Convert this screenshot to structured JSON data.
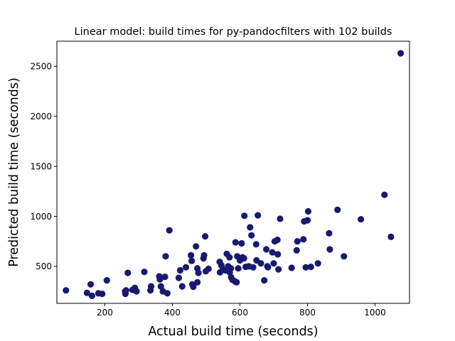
{
  "chart_data": {
    "type": "scatter",
    "title": "Linear model: build times for py-pandocfilters with 102 builds",
    "xlabel": "Actual build time (seconds)",
    "ylabel": "Predicted build time (seconds)",
    "xlim": [
      58,
      1102
    ],
    "ylim": [
      130,
      2751
    ],
    "xticks": [
      200,
      400,
      600,
      800,
      1000
    ],
    "yticks": [
      500,
      1000,
      1500,
      2000,
      2500
    ],
    "marker_color": "#191970",
    "grid": false,
    "points": [
      [
        85,
        260
      ],
      [
        147,
        235
      ],
      [
        158,
        320
      ],
      [
        162,
        205
      ],
      [
        181,
        230
      ],
      [
        192,
        225
      ],
      [
        206,
        360
      ],
      [
        261,
        225
      ],
      [
        263,
        260
      ],
      [
        268,
        435
      ],
      [
        282,
        265
      ],
      [
        289,
        285
      ],
      [
        294,
        250
      ],
      [
        317,
        445
      ],
      [
        335,
        260
      ],
      [
        337,
        300
      ],
      [
        361,
        400
      ],
      [
        363,
        370
      ],
      [
        366,
        300
      ],
      [
        372,
        250
      ],
      [
        378,
        395
      ],
      [
        380,
        600
      ],
      [
        385,
        230
      ],
      [
        391,
        860
      ],
      [
        419,
        385
      ],
      [
        423,
        460
      ],
      [
        429,
        300
      ],
      [
        440,
        490
      ],
      [
        455,
        610
      ],
      [
        457,
        555
      ],
      [
        459,
        320
      ],
      [
        462,
        295
      ],
      [
        470,
        700
      ],
      [
        474,
        340
      ],
      [
        474,
        480
      ],
      [
        477,
        435
      ],
      [
        492,
        580
      ],
      [
        494,
        610
      ],
      [
        497,
        800
      ],
      [
        499,
        450
      ],
      [
        507,
        475
      ],
      [
        540,
        545
      ],
      [
        541,
        440
      ],
      [
        550,
        470
      ],
      [
        557,
        460
      ],
      [
        561,
        625
      ],
      [
        565,
        500
      ],
      [
        569,
        590
      ],
      [
        570,
        440
      ],
      [
        573,
        480
      ],
      [
        574,
        390
      ],
      [
        578,
        365
      ],
      [
        585,
        350
      ],
      [
        587,
        740
      ],
      [
        590,
        340
      ],
      [
        592,
        600
      ],
      [
        595,
        480
      ],
      [
        600,
        560
      ],
      [
        605,
        730
      ],
      [
        608,
        590
      ],
      [
        613,
        1005
      ],
      [
        617,
        495
      ],
      [
        626,
        500
      ],
      [
        630,
        890
      ],
      [
        634,
        810
      ],
      [
        639,
        490
      ],
      [
        648,
        720
      ],
      [
        649,
        560
      ],
      [
        653,
        1010
      ],
      [
        662,
        530
      ],
      [
        672,
        360
      ],
      [
        678,
        670
      ],
      [
        681,
        500
      ],
      [
        683,
        490
      ],
      [
        696,
        640
      ],
      [
        703,
        750
      ],
      [
        711,
        765
      ],
      [
        712,
        620
      ],
      [
        714,
        470
      ],
      [
        719,
        975
      ],
      [
        753,
        485
      ],
      [
        768,
        660
      ],
      [
        770,
        750
      ],
      [
        788,
        770
      ],
      [
        790,
        950
      ],
      [
        795,
        490
      ],
      [
        800,
        960
      ],
      [
        802,
        1050
      ],
      [
        810,
        495
      ],
      [
        831,
        530
      ],
      [
        864,
        830
      ],
      [
        866,
        670
      ],
      [
        889,
        1065
      ],
      [
        908,
        600
      ],
      [
        958,
        970
      ],
      [
        1028,
        1215
      ],
      [
        1047,
        795
      ],
      [
        1076,
        2630
      ],
      [
        612,
        580
      ],
      [
        545,
        510
      ],
      [
        700,
        530
      ],
      [
        260,
        250
      ]
    ]
  }
}
